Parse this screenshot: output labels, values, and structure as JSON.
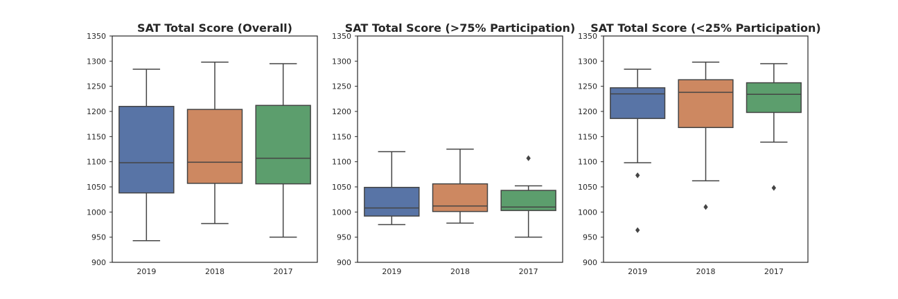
{
  "chart_data": [
    {
      "type": "box",
      "title": "SAT Total Score (Overall)",
      "categories": [
        "2019",
        "2018",
        "2017"
      ],
      "ylim": [
        900,
        1350
      ],
      "yticks": [
        "900",
        "950",
        "1000",
        "1050",
        "1100",
        "1150",
        "1200",
        "1250",
        "1300",
        "1350"
      ],
      "boxes": [
        {
          "category": "2019",
          "whisker_low": 943,
          "q1": 1038,
          "median": 1098,
          "q3": 1210,
          "whisker_high": 1284,
          "outliers": []
        },
        {
          "category": "2018",
          "whisker_low": 977,
          "q1": 1057,
          "median": 1099,
          "q3": 1204,
          "whisker_high": 1298,
          "outliers": []
        },
        {
          "category": "2017",
          "whisker_low": 950,
          "q1": 1056,
          "median": 1107,
          "q3": 1212,
          "whisker_high": 1295,
          "outliers": []
        }
      ]
    },
    {
      "type": "box",
      "title": "SAT Total Score (>75% Participation)",
      "categories": [
        "2019",
        "2018",
        "2017"
      ],
      "ylim": [
        900,
        1350
      ],
      "yticks": [
        "900",
        "950",
        "1000",
        "1050",
        "1100",
        "1150",
        "1200",
        "1250",
        "1300",
        "1350"
      ],
      "boxes": [
        {
          "category": "2019",
          "whisker_low": 975,
          "q1": 992,
          "median": 1008,
          "q3": 1049,
          "whisker_high": 1120,
          "outliers": []
        },
        {
          "category": "2018",
          "whisker_low": 978,
          "q1": 1001,
          "median": 1012,
          "q3": 1056,
          "whisker_high": 1125,
          "outliers": []
        },
        {
          "category": "2017",
          "whisker_low": 950,
          "q1": 1003,
          "median": 1010,
          "q3": 1043,
          "whisker_high": 1052,
          "outliers": [
            1107
          ]
        }
      ]
    },
    {
      "type": "box",
      "title": "SAT Total Score (<25% Participation)",
      "categories": [
        "2019",
        "2018",
        "2017"
      ],
      "ylim": [
        900,
        1350
      ],
      "yticks": [
        "900",
        "950",
        "1000",
        "1050",
        "1100",
        "1150",
        "1200",
        "1250",
        "1300",
        "1350"
      ],
      "boxes": [
        {
          "category": "2019",
          "whisker_low": 1098,
          "q1": 1186,
          "median": 1235,
          "q3": 1247,
          "whisker_high": 1284,
          "outliers": [
            1073,
            964
          ]
        },
        {
          "category": "2018",
          "whisker_low": 1062,
          "q1": 1168,
          "median": 1238,
          "q3": 1263,
          "whisker_high": 1298,
          "outliers": [
            1010
          ]
        },
        {
          "category": "2017",
          "whisker_low": 1139,
          "q1": 1198,
          "median": 1234,
          "q3": 1257,
          "whisker_high": 1295,
          "outliers": [
            1048
          ]
        }
      ]
    }
  ],
  "colors": {
    "box_fills": [
      "#5874a6",
      "#cd8861",
      "#5c9e6d"
    ],
    "lines": "#444444",
    "frame": "#262626",
    "text": "#262626"
  }
}
